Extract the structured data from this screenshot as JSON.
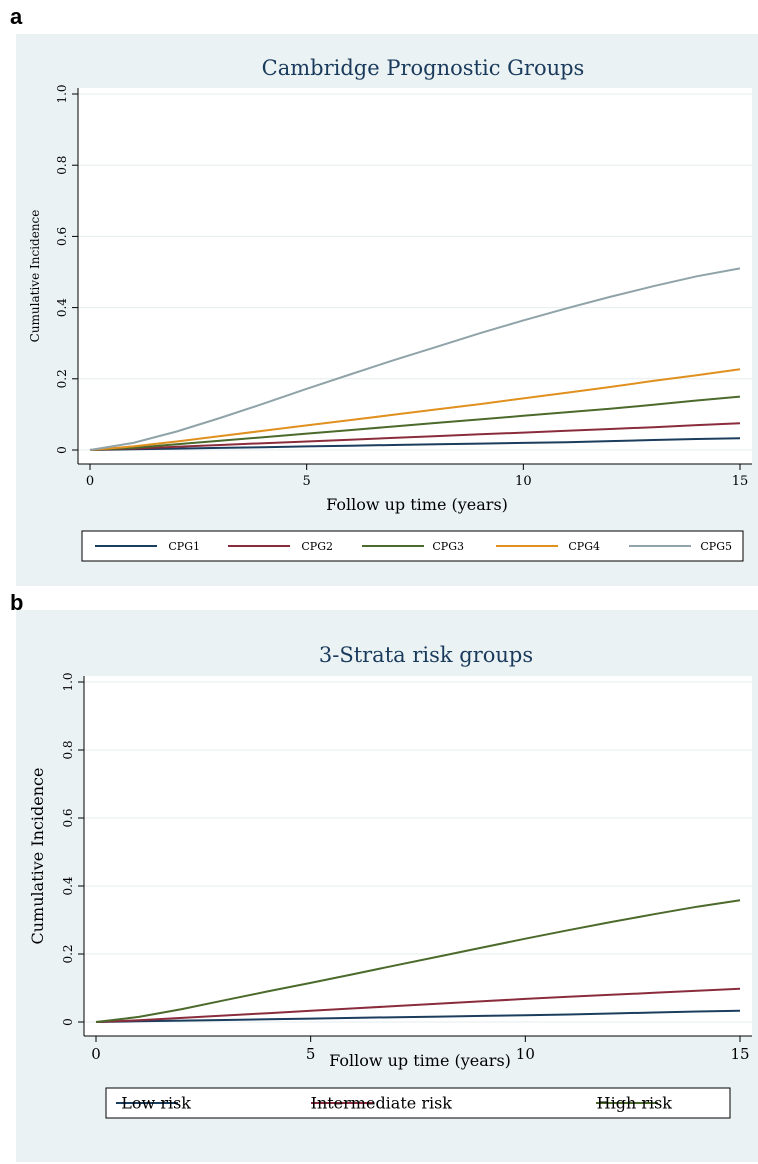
{
  "chart_data": [
    {
      "panel": "a",
      "type": "line",
      "title": "Cambridge Prognostic Groups",
      "xlabel": "Follow up time (years)",
      "ylabel": "Cumulative Incidence",
      "xlim": [
        0,
        15
      ],
      "ylim": [
        0,
        1
      ],
      "xticks": [
        "0",
        "5",
        "10",
        "15"
      ],
      "yticks": [
        "0",
        "0.2",
        "0.4",
        "0.6",
        "0.8",
        "1.0"
      ],
      "grid": true,
      "legend_position": "bottom",
      "x": [
        0,
        1,
        2,
        3,
        4,
        5,
        6,
        7,
        8,
        9,
        10,
        11,
        12,
        13,
        14,
        15
      ],
      "series": [
        {
          "name": "CPG1",
          "color": "#1b3d5e",
          "values": [
            0,
            0.002,
            0.004,
            0.006,
            0.008,
            0.01,
            0.012,
            0.014,
            0.016,
            0.018,
            0.02,
            0.022,
            0.025,
            0.028,
            0.031,
            0.033
          ]
        },
        {
          "name": "CPG2",
          "color": "#8b2c3c",
          "values": [
            0,
            0.004,
            0.009,
            0.014,
            0.019,
            0.024,
            0.029,
            0.034,
            0.039,
            0.044,
            0.049,
            0.054,
            0.059,
            0.064,
            0.07,
            0.075
          ]
        },
        {
          "name": "CPG3",
          "color": "#4b6a2b",
          "values": [
            0,
            0.006,
            0.016,
            0.026,
            0.036,
            0.046,
            0.056,
            0.066,
            0.076,
            0.086,
            0.096,
            0.106,
            0.116,
            0.127,
            0.139,
            0.15
          ]
        },
        {
          "name": "CPG4",
          "color": "#e0901f",
          "values": [
            0,
            0.01,
            0.024,
            0.039,
            0.054,
            0.069,
            0.084,
            0.099,
            0.114,
            0.129,
            0.145,
            0.161,
            0.177,
            0.194,
            0.21,
            0.227
          ]
        },
        {
          "name": "CPG5",
          "color": "#8fa3a8",
          "values": [
            0,
            0.02,
            0.052,
            0.09,
            0.13,
            0.172,
            0.212,
            0.252,
            0.29,
            0.328,
            0.364,
            0.398,
            0.43,
            0.46,
            0.488,
            0.51
          ]
        }
      ]
    },
    {
      "panel": "b",
      "type": "line",
      "title": "3-Strata risk groups",
      "xlabel": "Follow up time (years)",
      "ylabel": "Cumulative Incidence",
      "xlim": [
        0,
        15
      ],
      "ylim": [
        0,
        1
      ],
      "xticks": [
        "0",
        "5",
        "10",
        "15"
      ],
      "yticks": [
        "0",
        "0.2",
        "0.4",
        "0.6",
        "0.8",
        "1.0"
      ],
      "grid": true,
      "legend_position": "bottom",
      "x": [
        0,
        1,
        2,
        3,
        4,
        5,
        6,
        7,
        8,
        9,
        10,
        11,
        12,
        13,
        14,
        15
      ],
      "series": [
        {
          "name": "Low risk",
          "color": "#1b3d5e",
          "values": [
            0,
            0.002,
            0.004,
            0.006,
            0.008,
            0.01,
            0.012,
            0.014,
            0.016,
            0.018,
            0.02,
            0.022,
            0.025,
            0.028,
            0.031,
            0.033
          ]
        },
        {
          "name": "Intermediate risk",
          "color": "#8b2c3c",
          "values": [
            0,
            0.005,
            0.012,
            0.019,
            0.026,
            0.033,
            0.04,
            0.047,
            0.054,
            0.061,
            0.068,
            0.074,
            0.08,
            0.086,
            0.092,
            0.098
          ]
        },
        {
          "name": "High risk",
          "color": "#4b6a2b",
          "values": [
            0,
            0.015,
            0.038,
            0.064,
            0.09,
            0.115,
            0.141,
            0.167,
            0.193,
            0.219,
            0.245,
            0.27,
            0.294,
            0.317,
            0.339,
            0.358
          ]
        }
      ]
    }
  ]
}
